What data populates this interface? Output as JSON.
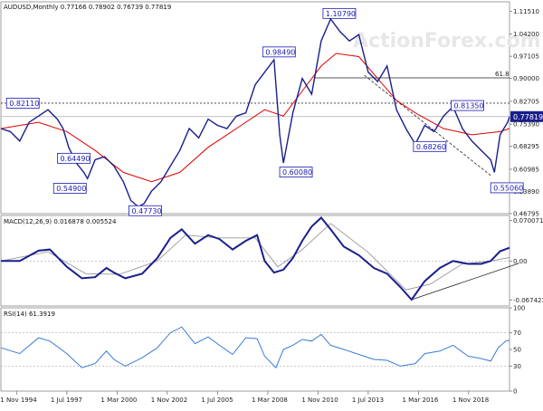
{
  "watermark": "ActionForex.com",
  "chart_data": [
    {
      "type": "line",
      "panel": "price",
      "title": "AUDUSD,Monthly  0.77166 0.78902 0.76739 0.77819",
      "ylim": [
        0.4679,
        1.1451
      ],
      "y_ticks": [
        "1.11510",
        "1.04200",
        "0.97105",
        "0.90000",
        "0.82705",
        "0.75390",
        "0.68295",
        "0.60985",
        "0.53890",
        "0.46795"
      ],
      "y_tick_values": [
        1.1151,
        1.042,
        0.97105,
        0.9,
        0.82705,
        0.7539,
        0.68295,
        0.60985,
        0.5389,
        0.46795
      ],
      "current_price_label": "0.77819",
      "current_price": 0.77819,
      "x_labels": [
        "1 Nov 1994",
        "1 Jul 1997",
        "1 Mar 2000",
        "1 Nov 2002",
        "1 Jul 2005",
        "1 Mar 2008",
        "1 Nov 2010",
        "1 Jul 2013",
        "1 Mar 2016",
        "1 Nov 2018"
      ],
      "x_label_values": [
        1994.83,
        1997.5,
        2000.17,
        2002.83,
        2005.5,
        2008.17,
        2010.83,
        2013.5,
        2016.17,
        2018.83
      ],
      "xlim": [
        1994.0,
        2021.0
      ],
      "price_series": {
        "x": [
          1994.0,
          1994.5,
          1995.0,
          1995.5,
          1996.0,
          1996.5,
          1997.0,
          1997.3,
          1997.6,
          1998.0,
          1998.4,
          1998.6,
          1999.0,
          1999.5,
          2000.0,
          2000.5,
          2000.9,
          2001.3,
          2001.6,
          2002.0,
          2002.5,
          2003.0,
          2003.5,
          2004.0,
          2004.5,
          2005.0,
          2005.5,
          2006.0,
          2006.5,
          2007.0,
          2007.5,
          2008.0,
          2008.5,
          2008.8,
          2009.0,
          2009.5,
          2010.0,
          2010.5,
          2011.0,
          2011.5,
          2012.0,
          2012.5,
          2013.0,
          2013.5,
          2014.0,
          2014.5,
          2015.0,
          2015.5,
          2016.0,
          2016.5,
          2017.0,
          2017.5,
          2018.0,
          2018.5,
          2019.0,
          2019.5,
          2020.0,
          2020.2,
          2020.5,
          2020.9,
          2021.0
        ],
        "y": [
          0.74,
          0.73,
          0.7,
          0.76,
          0.78,
          0.8,
          0.77,
          0.74,
          0.68,
          0.63,
          0.6,
          0.58,
          0.64,
          0.65,
          0.62,
          0.57,
          0.51,
          0.49,
          0.5,
          0.54,
          0.57,
          0.62,
          0.67,
          0.74,
          0.71,
          0.77,
          0.75,
          0.74,
          0.78,
          0.79,
          0.88,
          0.92,
          0.96,
          0.72,
          0.63,
          0.79,
          0.9,
          0.85,
          1.02,
          1.09,
          1.05,
          1.02,
          1.04,
          0.92,
          0.89,
          0.94,
          0.8,
          0.74,
          0.69,
          0.75,
          0.73,
          0.78,
          0.81,
          0.74,
          0.7,
          0.67,
          0.64,
          0.6,
          0.72,
          0.76,
          0.778
        ]
      },
      "ma_series": {
        "x": [
          1994.0,
          1996.0,
          1997.5,
          1999.0,
          2000.5,
          2002.0,
          2003.5,
          2005.0,
          2006.5,
          2008.0,
          2009.0,
          2010.0,
          2011.0,
          2011.8,
          2013.0,
          2014.0,
          2015.0,
          2016.0,
          2017.5,
          2019.0,
          2020.5,
          2021.0
        ],
        "y": [
          0.74,
          0.76,
          0.73,
          0.67,
          0.6,
          0.57,
          0.6,
          0.68,
          0.74,
          0.8,
          0.78,
          0.86,
          0.94,
          0.98,
          0.97,
          0.9,
          0.83,
          0.79,
          0.74,
          0.72,
          0.73,
          0.74
        ]
      },
      "annotations": [
        {
          "text": "0.82110",
          "x": 1994.3,
          "y": 0.8211
        },
        {
          "text": "0.64490",
          "x": 1997.0,
          "y": 0.6449
        },
        {
          "text": "0.54900",
          "x": 1996.8,
          "y": 0.549
        },
        {
          "text": "0.47730",
          "x": 2000.8,
          "y": 0.4773
        },
        {
          "text": "0.98490",
          "x": 2007.9,
          "y": 0.9849
        },
        {
          "text": "0.60080",
          "x": 2008.8,
          "y": 0.6008
        },
        {
          "text": "1.10790",
          "x": 2011.1,
          "y": 1.1079
        },
        {
          "text": "0.68260",
          "x": 2015.9,
          "y": 0.6826
        },
        {
          "text": "0.81350",
          "x": 2017.9,
          "y": 0.8135
        },
        {
          "text": "0.55060",
          "x": 2020.0,
          "y": 0.5506
        }
      ],
      "fib_label": "61.8",
      "fib_level": 0.902,
      "dotted_level": 0.8211,
      "trendline": [
        [
          2013.3,
          0.91
        ],
        [
          2020.0,
          0.59
        ]
      ]
    },
    {
      "type": "line",
      "panel": "macd",
      "title": "MACD(12,26,9) 0.016878 0.005524",
      "ylim": [
        -0.078,
        0.079
      ],
      "y_ticks": [
        "0.070071",
        "0.00",
        "-0.067423"
      ],
      "y_tick_values": [
        0.070071,
        0.0,
        -0.067423
      ],
      "macd_series": {
        "x": [
          1994.0,
          1995.0,
          1996.0,
          1996.6,
          1997.5,
          1998.3,
          1999.0,
          1999.6,
          2000.0,
          2000.6,
          2001.5,
          2002.3,
          2003.0,
          2003.6,
          2004.3,
          2005.0,
          2005.6,
          2006.3,
          2007.0,
          2007.6,
          2008.0,
          2008.5,
          2009.0,
          2009.5,
          2010.0,
          2010.5,
          2011.0,
          2011.5,
          2012.2,
          2013.0,
          2013.8,
          2014.5,
          2015.2,
          2015.8,
          2016.5,
          2017.3,
          2018.0,
          2018.8,
          2019.5,
          2020.0,
          2020.5,
          2021.0
        ],
        "y": [
          0.0,
          0.0,
          0.018,
          0.02,
          -0.01,
          -0.03,
          -0.028,
          -0.012,
          -0.02,
          -0.03,
          -0.022,
          0.005,
          0.04,
          0.055,
          0.03,
          0.045,
          0.038,
          0.02,
          0.035,
          0.045,
          0.0,
          -0.02,
          -0.015,
          0.005,
          0.035,
          0.06,
          0.075,
          0.055,
          0.025,
          0.01,
          -0.012,
          -0.022,
          -0.045,
          -0.067,
          -0.035,
          -0.012,
          0.0,
          -0.005,
          -0.005,
          0.0,
          0.017,
          0.023
        ]
      },
      "signal_series": {
        "x": [
          1994.0,
          1996.5,
          1998.5,
          2000.3,
          2002.3,
          2003.8,
          2005.5,
          2007.5,
          2008.7,
          2010.0,
          2011.5,
          2013.5,
          2015.5,
          2016.8,
          2018.5,
          2020.0,
          2021.0
        ],
        "y": [
          0.0,
          0.016,
          -0.022,
          -0.023,
          0.0,
          0.045,
          0.04,
          0.04,
          -0.01,
          0.02,
          0.065,
          0.015,
          -0.05,
          -0.04,
          -0.005,
          0.0,
          0.006
        ]
      },
      "trendline": [
        [
          2015.8,
          -0.067
        ],
        [
          2021.5,
          -0.004
        ]
      ]
    },
    {
      "type": "line",
      "panel": "rsi",
      "title": "RSI(14) 61.3919",
      "ylim": [
        0,
        100
      ],
      "y_ticks": [
        "100",
        "70",
        "50",
        "30",
        "0"
      ],
      "y_tick_values": [
        100,
        70,
        50,
        30,
        0
      ],
      "rsi_series": {
        "x": [
          1994.0,
          1995.0,
          1996.0,
          1996.6,
          1997.5,
          1998.3,
          1999.0,
          1999.6,
          2000.0,
          2000.6,
          2001.5,
          2002.3,
          2003.0,
          2003.6,
          2004.3,
          2005.0,
          2005.6,
          2006.3,
          2007.0,
          2007.6,
          2008.0,
          2008.6,
          2009.0,
          2009.5,
          2010.0,
          2010.5,
          2011.0,
          2011.5,
          2012.2,
          2013.0,
          2013.8,
          2014.5,
          2015.2,
          2016.0,
          2016.5,
          2017.3,
          2018.0,
          2018.8,
          2019.5,
          2020.0,
          2020.4,
          2020.8,
          2021.0
        ],
        "y": [
          52,
          45,
          64,
          60,
          45,
          28,
          33,
          48,
          38,
          30,
          40,
          52,
          70,
          77,
          57,
          65,
          55,
          44,
          64,
          63,
          42,
          28,
          50,
          55,
          62,
          60,
          68,
          55,
          50,
          44,
          38,
          37,
          30,
          33,
          45,
          48,
          55,
          42,
          39,
          36,
          52,
          60,
          61
        ]
      }
    }
  ]
}
